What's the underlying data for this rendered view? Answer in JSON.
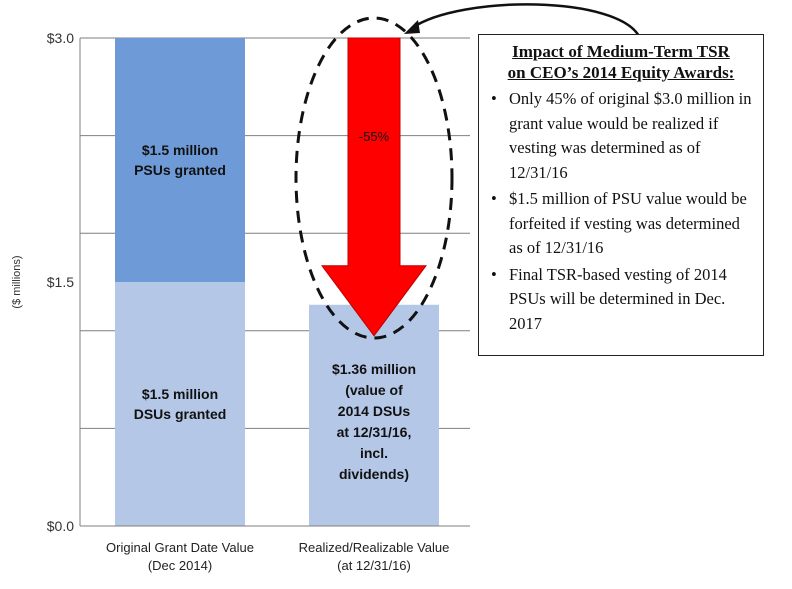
{
  "chart_data": {
    "type": "bar",
    "stacked": true,
    "ylabel": "($ millions)",
    "ylim": [
      0,
      3.0
    ],
    "ytick_labels": [
      "$0.0",
      "$1.5",
      "$3.0"
    ],
    "ytick_values": [
      0,
      1.5,
      3.0
    ],
    "gridlines_at": [
      0.6,
      1.2,
      1.8,
      2.4,
      3.0
    ],
    "grid": true,
    "categories": [
      "Original Grant Date Value\n(Dec 2014)",
      "Realized/Realizable Value\n(at 12/31/16)"
    ],
    "series": [
      {
        "name": "DSUs",
        "color": "#b4c7e7",
        "values": [
          1.5,
          1.36
        ],
        "labels": [
          "$1.5 million\nDSUs granted",
          "$1.36 million\n(value of\n2014 DSUs\nat 12/31/16,\nincl.\ndividends)"
        ]
      },
      {
        "name": "PSUs",
        "color": "#6e9bd8",
        "values": [
          1.5,
          0
        ],
        "labels": [
          "$1.5 million\nPSUs granted",
          ""
        ]
      }
    ],
    "annotations": [
      {
        "type": "down-arrow",
        "from_value": 3.0,
        "to_value": 1.2,
        "label": "-55%",
        "color": "#ff0000",
        "encircled": true
      }
    ]
  },
  "impact_box": {
    "title_line1": "Impact of Medium-Term TSR",
    "title_line2": "on CEO’s 2014 Equity Awards:",
    "bullets": [
      "Only 45% of original $3.0 million in grant value would be realized if vesting was determined as of 12/31/16",
      "$1.5 million of PSU value would be forfeited if vesting was determined as of 12/31/16",
      "Final TSR-based vesting of 2014 PSUs will be determined in Dec. 2017"
    ]
  },
  "colors": {
    "psu": "#6e9bd8",
    "dsu": "#b4c7e7",
    "arrow": "#ff0000",
    "grid": "#7f7f7f"
  }
}
